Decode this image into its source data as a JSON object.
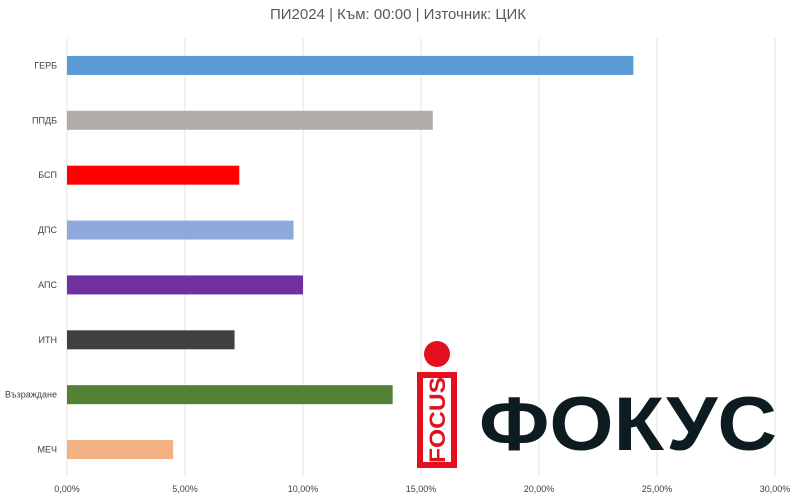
{
  "chart_data": {
    "type": "bar",
    "orientation": "horizontal",
    "title": "ПИ2024  | Към: 00:00  | Източник: ЦИК",
    "categories": [
      "ГЕРБ",
      "ППДБ",
      "БСП",
      "ДПС",
      "АПС",
      "ИТН",
      "Възраждане",
      "МЕЧ"
    ],
    "values": [
      24.0,
      15.5,
      7.3,
      9.6,
      10.0,
      7.1,
      13.8,
      4.5
    ],
    "colors": [
      "#5b9bd5",
      "#b1abaa",
      "#ff0000",
      "#8eaadb",
      "#7030a0",
      "#404040",
      "#548235",
      "#f4b183"
    ],
    "x_ticks": [
      0,
      5,
      10,
      15,
      20,
      25,
      30
    ],
    "x_tick_labels": [
      "0,00%",
      "5,00%",
      "10,00%",
      "15,00%",
      "20,00%",
      "25,00%",
      "30,00%"
    ],
    "xlim": [
      0,
      30
    ],
    "grid": true,
    "xlabel": "",
    "ylabel": ""
  },
  "watermark": {
    "word": "ФОКУС",
    "tag": "FOCUS",
    "accent_color": "#e30f1f",
    "text_color": "#0c1c20"
  }
}
